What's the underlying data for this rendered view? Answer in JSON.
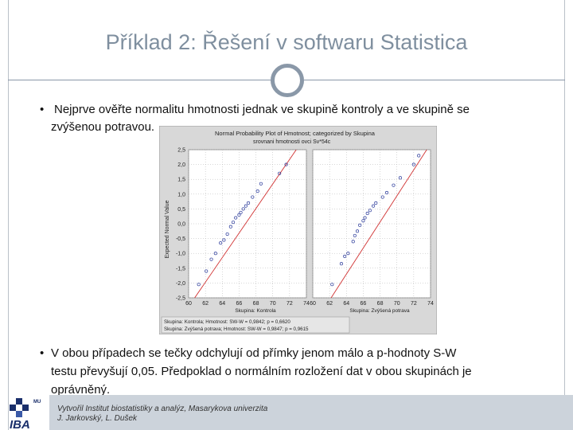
{
  "slide": {
    "title": "Příklad 2: Řešení v softwaru Statistica",
    "bullet1_line1": "Nejprve ověřte normalitu hmotnosti jednak ve skupině kontroly a ve skupině se",
    "bullet1_line2": "zvýšenou potravou.",
    "bullet2_line1": "V obou případech se tečky odchylují od přímky jenom málo a p-hodnoty S-W",
    "bullet2_line2": "testu převyšují 0,05. Předpoklad o normálním rozložení dat v obou skupinách je",
    "bullet2_line3": "oprávněný.",
    "bullet_symbol": "•"
  },
  "footer": {
    "line1": "Vytvořil Institut biostatistiky a analýz, Masarykova univerzita",
    "line2": "J. Jarkovský, L. Dušek",
    "logo_text": "IBA",
    "logo_small_text": "MU"
  },
  "chart_data": {
    "type": "scatter",
    "title": "Normal Probability Plot of Hmotnost; categorized by Skupina",
    "subtitle": "srovnani hmotnosti ovci Sv*54c",
    "ylabel": "Expected Normal Value",
    "yticks": [
      "2,5",
      "2,0",
      "1,5",
      "1,0",
      "0,5",
      "0,0",
      "-0,5",
      "-1,0",
      "-1,5",
      "-2,0",
      "-2,5"
    ],
    "xticks": [
      "60",
      "62",
      "64",
      "66",
      "68",
      "70",
      "72",
      "74"
    ],
    "ylim": [
      -2.5,
      2.5
    ],
    "xlim": [
      60,
      74
    ],
    "panels": [
      {
        "name": "Skupina: Kontrola",
        "points": [
          [
            61.2,
            -2.05
          ],
          [
            62.1,
            -1.6
          ],
          [
            62.7,
            -1.2
          ],
          [
            63.2,
            -1.0
          ],
          [
            63.8,
            -0.65
          ],
          [
            64.2,
            -0.55
          ],
          [
            64.6,
            -0.35
          ],
          [
            65.0,
            -0.1
          ],
          [
            65.3,
            0.05
          ],
          [
            65.6,
            0.2
          ],
          [
            66.0,
            0.3
          ],
          [
            66.2,
            0.38
          ],
          [
            66.5,
            0.5
          ],
          [
            66.8,
            0.6
          ],
          [
            67.1,
            0.7
          ],
          [
            67.6,
            0.9
          ],
          [
            68.2,
            1.1
          ],
          [
            68.6,
            1.35
          ],
          [
            70.8,
            1.7
          ],
          [
            71.6,
            2.0
          ]
        ],
        "line": [
          [
            60,
            -2.8
          ],
          [
            74,
            3.0
          ]
        ]
      },
      {
        "name": "Skupina: Zvýšená potrava",
        "points": [
          [
            62.3,
            -2.05
          ],
          [
            63.4,
            -1.35
          ],
          [
            63.8,
            -1.1
          ],
          [
            64.2,
            -1.0
          ],
          [
            64.8,
            -0.6
          ],
          [
            65.0,
            -0.4
          ],
          [
            65.3,
            -0.25
          ],
          [
            65.6,
            -0.05
          ],
          [
            66.0,
            0.1
          ],
          [
            66.2,
            0.2
          ],
          [
            66.5,
            0.35
          ],
          [
            66.8,
            0.45
          ],
          [
            67.2,
            0.6
          ],
          [
            67.5,
            0.7
          ],
          [
            68.3,
            0.9
          ],
          [
            68.8,
            1.05
          ],
          [
            69.6,
            1.3
          ],
          [
            70.4,
            1.55
          ],
          [
            72.0,
            2.0
          ],
          [
            72.6,
            2.3
          ]
        ],
        "line": [
          [
            61.5,
            -2.8
          ],
          [
            74,
            2.7
          ]
        ]
      }
    ],
    "legend": [
      {
        "label": "Skupina: Kontrola; Hmotnost: SW-W = 0,9842; p = 0,6620"
      },
      {
        "label": "Skupina: Zvýšená potrava; Hmotnost: SW-W = 0,9847; p = 0,9615"
      }
    ]
  }
}
